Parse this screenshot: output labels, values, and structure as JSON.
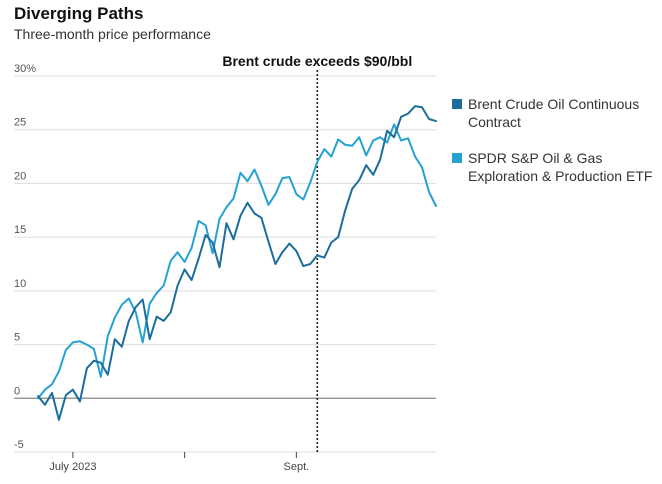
{
  "header": {
    "title": "Diverging Paths",
    "subtitle": "Three-month price performance"
  },
  "colors": {
    "brent": "#1b6e9c",
    "xop": "#25a2d3",
    "grid": "#dddddd",
    "zero": "#888888",
    "annotation": "#222222"
  },
  "chart_data": {
    "type": "line",
    "title": "Diverging Paths",
    "subtitle": "Three-month price performance",
    "ylim": [
      -5,
      30
    ],
    "yticks": [
      30,
      25,
      20,
      15,
      10,
      5,
      0,
      -5
    ],
    "ytick_labels": [
      "30%",
      "25",
      "20",
      "15",
      "10",
      "5",
      "0",
      "-5"
    ],
    "xticks": [
      {
        "label": "July 2023",
        "index": 5
      },
      {
        "label": "",
        "index": 21
      },
      {
        "label": "Sept.",
        "index": 37
      }
    ],
    "annotation": {
      "label": "Brent crude exceeds $90/bbl",
      "index": 40
    },
    "grid": true,
    "legend_position": "right",
    "series": [
      {
        "name": "Brent Crude Oil Continuous Contract",
        "color": "#1b6e9c",
        "values": [
          0.2,
          -0.6,
          0.5,
          -2.0,
          0.3,
          0.8,
          -0.3,
          2.8,
          3.5,
          3.3,
          2.2,
          5.5,
          4.8,
          7.2,
          8.5,
          9.2,
          5.5,
          7.6,
          7.2,
          8.0,
          10.5,
          12.0,
          11.0,
          13.0,
          15.2,
          14.5,
          12.2,
          16.3,
          14.8,
          17.0,
          18.2,
          17.2,
          16.8,
          14.6,
          12.5,
          13.6,
          14.4,
          13.7,
          12.3,
          12.5,
          13.3,
          13.1,
          14.5,
          15.0,
          17.5,
          19.5,
          20.3,
          21.7,
          20.8,
          22.2,
          24.9,
          24.3,
          26.2,
          26.5,
          27.2,
          27.1,
          26.0,
          25.8
        ]
      },
      {
        "name": "SPDR S&P Oil & Gas Exploration & Production ETF",
        "color": "#25a2d3",
        "values": [
          0.0,
          0.8,
          1.3,
          2.5,
          4.5,
          5.2,
          5.3,
          5.0,
          4.6,
          2.0,
          5.8,
          7.5,
          8.7,
          9.3,
          8.0,
          5.2,
          8.8,
          9.8,
          10.5,
          12.8,
          13.6,
          12.7,
          14.0,
          16.5,
          16.1,
          13.5,
          16.7,
          17.8,
          18.6,
          21.0,
          20.2,
          21.3,
          19.8,
          18.0,
          19.0,
          20.5,
          20.6,
          19.0,
          18.5,
          20.1,
          22.0,
          23.2,
          22.5,
          24.1,
          23.6,
          23.5,
          24.3,
          22.6,
          24.0,
          24.3,
          23.8,
          25.5,
          24.0,
          24.2,
          22.5,
          21.5,
          19.2,
          17.9
        ]
      }
    ]
  }
}
